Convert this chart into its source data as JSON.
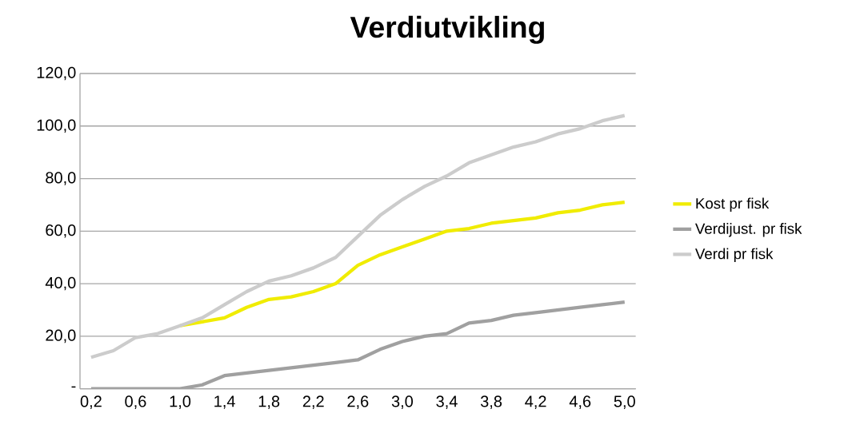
{
  "chart_data": {
    "type": "line",
    "title": "Verdiutvikling",
    "x": [
      0.2,
      0.4,
      0.6,
      0.8,
      1.0,
      1.2,
      1.4,
      1.6,
      1.8,
      2.0,
      2.2,
      2.4,
      2.6,
      2.8,
      3.0,
      3.2,
      3.4,
      3.6,
      3.8,
      4.0,
      4.2,
      4.4,
      4.6,
      4.8,
      5.0
    ],
    "series": [
      {
        "name": "Kost pr fisk",
        "color": "#f0ec00",
        "values": [
          null,
          null,
          null,
          null,
          24,
          25.5,
          27,
          31,
          34,
          35,
          37,
          40,
          47,
          51,
          54,
          57,
          60,
          61,
          63,
          64,
          65,
          67,
          68,
          70,
          71
        ]
      },
      {
        "name": "Verdijust. pr fisk",
        "color": "#a0a0a0",
        "values": [
          0,
          0,
          0,
          0,
          0,
          1.5,
          5,
          6,
          7,
          8,
          9,
          10,
          11,
          15,
          18,
          20,
          21,
          25,
          26,
          28,
          29,
          30,
          31,
          32,
          33
        ]
      },
      {
        "name": "Verdi pr fisk",
        "color": "#cccccc",
        "values": [
          12,
          14.5,
          19.5,
          21,
          24,
          27,
          32,
          37,
          41,
          43,
          46,
          50,
          58,
          66,
          72,
          77,
          81,
          86,
          89,
          92,
          94,
          97,
          99,
          102,
          104
        ]
      }
    ],
    "xlim": [
      0.1,
      5.1
    ],
    "xticks": [
      {
        "value": 0.2,
        "label": "0,2"
      },
      {
        "value": 0.6,
        "label": "0,6"
      },
      {
        "value": 1.0,
        "label": "1,0"
      },
      {
        "value": 1.4,
        "label": "1,4"
      },
      {
        "value": 1.8,
        "label": "1,8"
      },
      {
        "value": 2.2,
        "label": "2,2"
      },
      {
        "value": 2.6,
        "label": "2,6"
      },
      {
        "value": 3.0,
        "label": "3,0"
      },
      {
        "value": 3.4,
        "label": "3,4"
      },
      {
        "value": 3.8,
        "label": "3,8"
      },
      {
        "value": 4.2,
        "label": "4,2"
      },
      {
        "value": 4.6,
        "label": "4,6"
      },
      {
        "value": 5.0,
        "label": "5,0"
      }
    ],
    "ylim": [
      0,
      120
    ],
    "yticks": [
      {
        "value": 0,
        "label": "-"
      },
      {
        "value": 20,
        "label": "20,0"
      },
      {
        "value": 40,
        "label": "40,0"
      },
      {
        "value": 60,
        "label": "60,0"
      },
      {
        "value": 80,
        "label": "80,0"
      },
      {
        "value": 100,
        "label": "100,0"
      },
      {
        "value": 120,
        "label": "120,0"
      }
    ],
    "grid": "y",
    "legend": "right",
    "marker": "none",
    "line_style": "solid"
  }
}
